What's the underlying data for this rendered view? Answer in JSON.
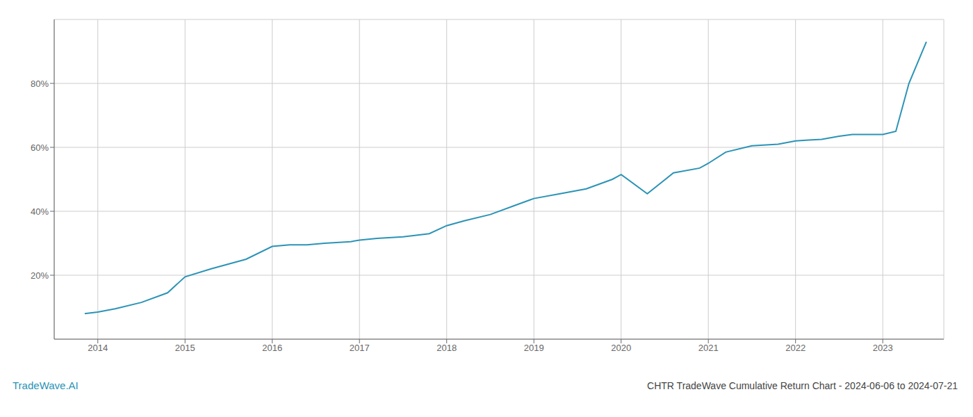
{
  "chart_data": {
    "type": "line",
    "title": "CHTR TradeWave Cumulative Return Chart - 2024-06-06 to 2024-07-21",
    "annotations": [
      "TradeWave.AI"
    ],
    "color": "#2b93b6",
    "grid": true,
    "x": [
      2013.85,
      2014.0,
      2014.2,
      2014.5,
      2014.8,
      2015.0,
      2015.3,
      2015.7,
      2016.0,
      2016.2,
      2016.4,
      2016.6,
      2016.9,
      2017.0,
      2017.2,
      2017.5,
      2017.8,
      2018.0,
      2018.2,
      2018.5,
      2018.8,
      2019.0,
      2019.3,
      2019.6,
      2019.9,
      2020.0,
      2020.3,
      2020.6,
      2020.9,
      2021.0,
      2021.2,
      2021.5,
      2021.8,
      2022.0,
      2022.15,
      2022.3,
      2022.5,
      2022.65,
      2022.8,
      2023.0,
      2023.15,
      2023.3,
      2023.5
    ],
    "values": [
      8.0,
      8.5,
      9.5,
      11.5,
      14.5,
      19.5,
      22.0,
      25.0,
      29.0,
      29.5,
      29.5,
      30.0,
      30.5,
      31.0,
      31.5,
      32.0,
      33.0,
      35.5,
      37.0,
      39.0,
      42.0,
      44.0,
      45.5,
      47.0,
      50.0,
      51.5,
      45.5,
      52.0,
      53.5,
      55.0,
      58.5,
      60.5,
      61.0,
      62.0,
      62.3,
      62.5,
      63.5,
      64.0,
      64.0,
      64.0,
      65.0,
      80.0,
      93.0
    ],
    "xlim": [
      2013.5,
      2023.7
    ],
    "ylim": [
      0,
      100
    ],
    "xticks": [
      2014,
      2015,
      2016,
      2017,
      2018,
      2019,
      2020,
      2021,
      2022,
      2023
    ],
    "yticks": [
      {
        "value": 20,
        "label": "20%"
      },
      {
        "value": 40,
        "label": "40%"
      },
      {
        "value": 60,
        "label": "60%"
      },
      {
        "value": 80,
        "label": "80%"
      }
    ]
  }
}
